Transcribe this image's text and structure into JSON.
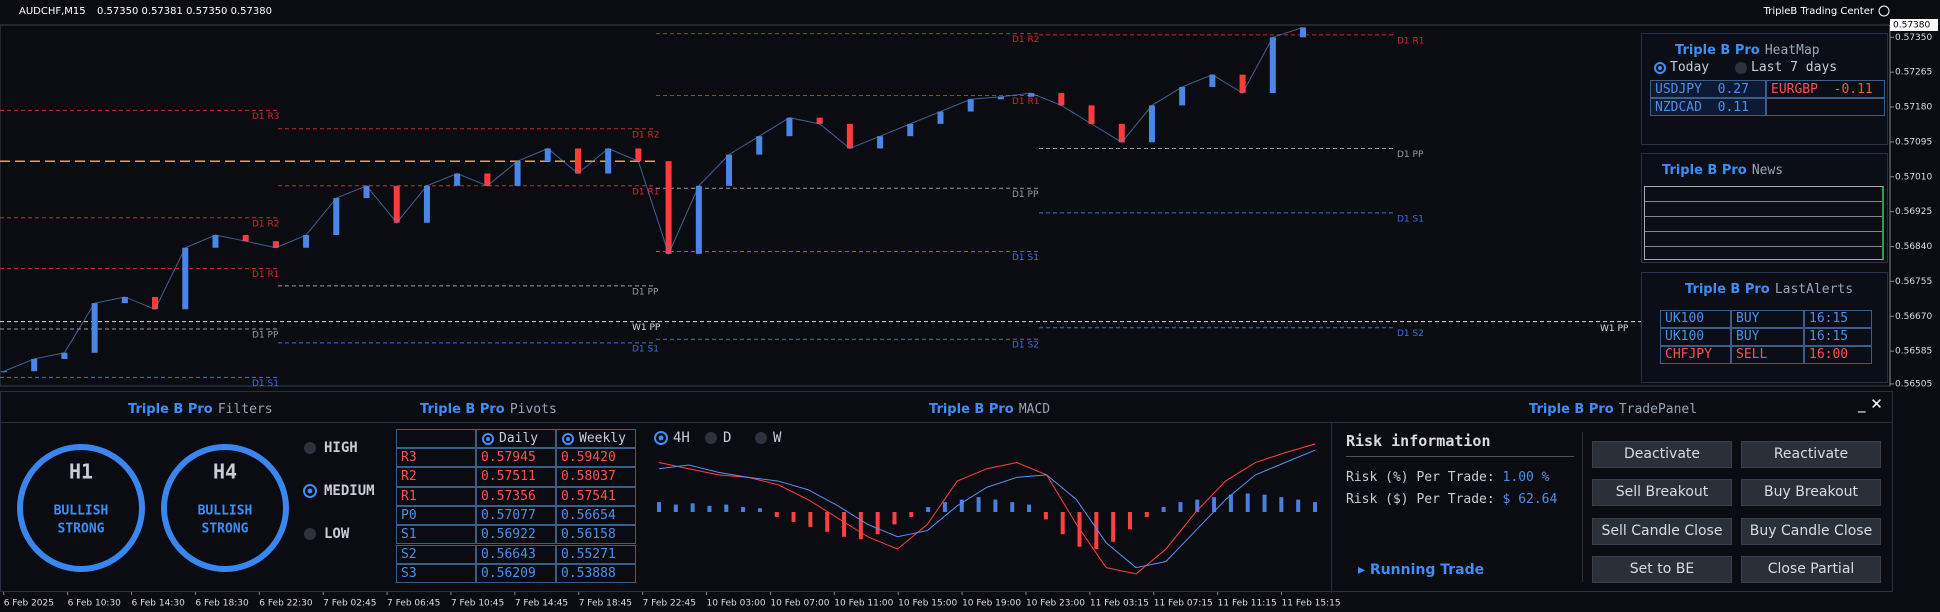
{
  "title_bar": {
    "symbol": "AUDCHF,M15",
    "ohlc": "0.57350 0.57381 0.57350 0.57380",
    "brand": "TripleB Trading Center"
  },
  "chart_data": [
    {
      "type": "price",
      "values": [
        0.56536,
        0.56566,
        0.56581,
        0.56702,
        0.56717,
        0.56687,
        0.56837,
        0.56868,
        0.56853,
        0.56837,
        0.56868,
        0.56958,
        0.56988,
        0.56898,
        0.56988,
        0.57018,
        0.56988,
        0.57048,
        0.57079,
        0.57018,
        0.57079,
        0.57048,
        0.56822,
        0.56988,
        0.57064,
        0.57109,
        0.57154,
        0.57139,
        0.57079,
        0.57109,
        0.57139,
        0.57169,
        0.57199,
        0.57205,
        0.57214,
        0.57184,
        0.57139,
        0.57094,
        0.57184,
        0.57229,
        0.57259,
        0.57214,
        0.5735,
        0.57374
      ],
      "ylim": [
        0.565,
        0.5738
      ],
      "yticks": [
        {
          "value": 0.5735,
          "label": "0.57350"
        },
        {
          "value": 0.57265,
          "label": "0.57265"
        },
        {
          "value": 0.5718,
          "label": "0.57180"
        },
        {
          "value": 0.57095,
          "label": "0.57095"
        },
        {
          "value": 0.5701,
          "label": "0.57010"
        },
        {
          "value": 0.56925,
          "label": "0.56925"
        },
        {
          "value": 0.5684,
          "label": "0.56840"
        },
        {
          "value": 0.56755,
          "label": "0.56755"
        },
        {
          "value": 0.5667,
          "label": "0.56670"
        },
        {
          "value": 0.56585,
          "label": "0.56585"
        },
        {
          "value": 0.56505,
          "label": "0.56505"
        }
      ],
      "current_price": {
        "value": 0.5738,
        "label": "0.57380"
      },
      "time_labels": [
        "6 Feb 2025",
        "6 Feb 10:30",
        "6 Feb 14:30",
        "6 Feb 18:30",
        "6 Feb 22:30",
        "7 Feb 02:45",
        "7 Feb 06:45",
        "7 Feb 10:45",
        "7 Feb 14:45",
        "7 Feb 18:45",
        "7 Feb 22:45",
        "10 Feb 03:00",
        "10 Feb 07:00",
        "10 Feb 11:00",
        "10 Feb 15:00",
        "10 Feb 19:00",
        "10 Feb 23:00",
        "11 Feb 03:15",
        "11 Feb 07:15",
        "11 Feb 11:15",
        "11 Feb 15:15"
      ],
      "up_color": "#4a86e8",
      "down_color": "#ff3c3c",
      "levels": [
        {
          "label": "D1 R3",
          "value": 0.57172,
          "color": "#d02828"
        },
        {
          "label": "D1 R2",
          "value": 0.5691,
          "color": "#d02828"
        },
        {
          "label": "D1 R1",
          "value": 0.56786,
          "color": "#d02828"
        },
        {
          "label": "D1 PP",
          "value": 0.56639,
          "color": "#9a9a9a"
        },
        {
          "label": "D1 S1",
          "value": 0.56521,
          "color": "#3a6ee0"
        },
        {
          "label": "D1 R2",
          "value": 0.57127,
          "color": "#d02828"
        },
        {
          "label": "D1 R1",
          "value": 0.56988,
          "color": "#d02828"
        },
        {
          "label": "D1 PP",
          "value": 0.56744,
          "color": "#9a9a9a"
        },
        {
          "label": "D1 S1",
          "value": 0.56605,
          "color": "#3a6ee0"
        },
        {
          "label": "D1 R2",
          "value": 0.57359,
          "color": "#d02828"
        },
        {
          "label": "D1 R1",
          "value": 0.57208,
          "color": "#d02828"
        },
        {
          "label": "D1 PP",
          "value": 0.56982,
          "color": "#9a9a9a"
        },
        {
          "label": "D1 S1",
          "value": 0.56828,
          "color": "#3a6ee0"
        },
        {
          "label": "D1 S2",
          "value": 0.56614,
          "color": "#3a6ee0"
        },
        {
          "label": "D1 R1",
          "value": 0.57356,
          "color": "#d02828"
        },
        {
          "label": "D1 PP",
          "value": 0.57079,
          "color": "#9a9a9a"
        },
        {
          "label": "D1 S1",
          "value": 0.56922,
          "color": "#3a6ee0"
        },
        {
          "label": "D1 S2",
          "value": 0.56642,
          "color": "#3a6ee0"
        },
        {
          "label": "W1 PP",
          "value": 0.56657,
          "color": "#dddddd"
        },
        {
          "label": null,
          "value": 0.57048,
          "color": "#ff9a2e"
        }
      ]
    },
    {
      "type": "macd",
      "brand": "Triple B Pro",
      "title": "MACD",
      "timeframes": [
        "4H",
        "D",
        "W"
      ],
      "selected_timeframe": 0,
      "histogram": [
        8,
        6,
        7,
        5,
        6,
        4,
        3,
        -4,
        -8,
        -12,
        -16,
        -20,
        -22,
        -18,
        -10,
        -4,
        4,
        8,
        10,
        12,
        10,
        8,
        6,
        -6,
        -18,
        -28,
        -30,
        -24,
        -14,
        -4,
        4,
        8,
        10,
        12,
        14,
        15,
        14,
        12,
        10,
        8
      ],
      "macd_line": [
        40,
        35,
        30,
        28,
        22,
        10,
        -5,
        -20,
        -30,
        -10,
        25,
        35,
        40,
        30,
        -10,
        -45,
        -50,
        -30,
        0,
        25,
        40,
        48,
        55
      ],
      "signal_line": [
        35,
        38,
        32,
        28,
        25,
        18,
        5,
        -10,
        -20,
        -15,
        5,
        20,
        28,
        30,
        10,
        -25,
        -45,
        -40,
        -15,
        10,
        30,
        40,
        50
      ],
      "positive_color": "#4a7fe0",
      "negative_color": "#ff4040",
      "macd_color": "#ff4040",
      "signal_color": "#5b8ef0"
    }
  ],
  "heatmap": {
    "brand": "Triple B Pro",
    "title": "HeatMap",
    "periods": [
      "Today",
      "Last 7 days"
    ],
    "cells": [
      [
        "USDJPY",
        "0.27",
        "EURGBP",
        "-0.11"
      ],
      [
        "NZDCAD",
        "0.11"
      ]
    ]
  },
  "news": {
    "brand": "Triple B Pro",
    "title": "News"
  },
  "alerts": {
    "brand": "Triple B Pro",
    "title": "LastAlerts",
    "rows": [
      [
        "UK100",
        "BUY",
        "16:15"
      ],
      [
        "UK100",
        "BUY",
        "16:15"
      ],
      [
        "CHFJPY",
        "SELL",
        "16:00"
      ]
    ]
  },
  "filters": {
    "brand": "Triple B Pro",
    "title": "Filters",
    "cards": [
      {
        "timeframe": "H1",
        "bias": "BULLISH",
        "strength": "STRONG"
      },
      {
        "timeframe": "H4",
        "bias": "BULLISH",
        "strength": "STRONG"
      }
    ],
    "levels": [
      "HIGH",
      "MEDIUM",
      "LOW"
    ],
    "selected_level": 1
  },
  "pivots": {
    "brand": "Triple B Pro",
    "title": "Pivots",
    "headers": [
      "Daily",
      "Weekly"
    ],
    "rows": [
      [
        "R3",
        "0.57945",
        "0.59420"
      ],
      [
        "R2",
        "0.57511",
        "0.58037"
      ],
      [
        "R1",
        "0.57356",
        "0.57541"
      ],
      [
        "P0",
        "0.57077",
        "0.56654"
      ],
      [
        "S1",
        "0.56922",
        "0.56158"
      ],
      [
        "S2",
        "0.56643",
        "0.55271"
      ],
      [
        "S3",
        "0.56209",
        "0.53888"
      ]
    ]
  },
  "trade_panel": {
    "brand": "Triple B Pro",
    "title": "TradePanel",
    "heading": "Risk information",
    "risk_pct_label": "Risk (%) Per Trade:",
    "risk_pct": "1.00 %",
    "risk_usd_label": "Risk ($) Per Trade:",
    "risk_usd": "$ 62.64",
    "running": "Running Trade",
    "buttons": [
      [
        "Deactivate",
        "Reactivate"
      ],
      [
        "Sell Breakout",
        "Buy Breakout"
      ],
      [
        "Sell Candle Close",
        "Buy Candle Close"
      ],
      [
        "Set to BE",
        "Close Partial"
      ]
    ]
  }
}
